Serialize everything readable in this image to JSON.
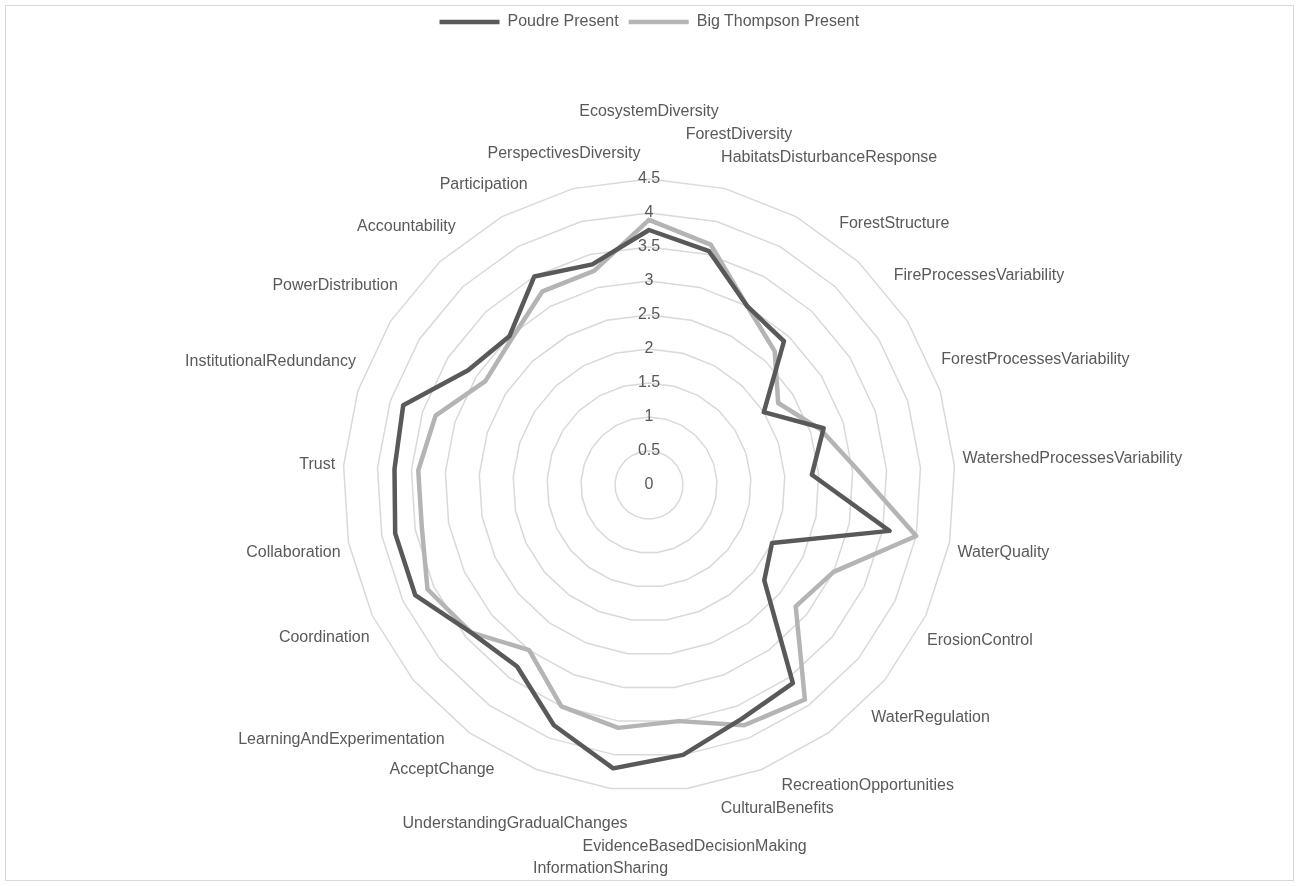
{
  "chart_data": {
    "type": "radar",
    "categories": [
      "EcosystemDiversity",
      "ForestDiversity",
      "HabitatsDisturbanceResponse",
      "ForestStructure",
      "FireProcessesVariability",
      "ForestProcessesVariability",
      "WatershedProcessesVariability",
      "WaterQuality",
      "ErosionControl",
      "WaterRegulation",
      "RecreationOpportunities",
      "CulturalBenefits",
      "EvidenceBasedDecisionMaking",
      "InformationSharing",
      "UnderstandingGradualChanges",
      "AcceptChange",
      "LearningAndExperimentation",
      "Coordination",
      "Collaboration",
      "Trust",
      "InstitutionalRedundancy",
      "PowerDistribution",
      "Accountability",
      "Participation",
      "PerspectivesDiversity"
    ],
    "series": [
      {
        "name": "Poudre Present",
        "color": "#595959",
        "values": [
          3.75,
          3.55,
          3.0,
          2.9,
          2.0,
          2.7,
          2.4,
          3.6,
          2.0,
          2.2,
          3.6,
          3.7,
          4.0,
          4.2,
          3.8,
          3.3,
          3.4,
          3.8,
          3.8,
          3.75,
          3.8,
          3.15,
          3.0,
          3.5,
          3.35
        ]
      },
      {
        "name": "Big Thompson Present",
        "color": "#b4b4b4",
        "values": [
          3.9,
          3.65,
          3.0,
          2.7,
          2.25,
          2.65,
          3.1,
          4.0,
          3.0,
          2.8,
          3.9,
          3.8,
          3.5,
          3.6,
          3.5,
          3.0,
          3.4,
          3.6,
          3.4,
          3.4,
          3.3,
          2.85,
          2.95,
          3.25,
          3.25
        ]
      }
    ],
    "ylim": [
      0,
      4.5
    ],
    "yticks": [
      0,
      0.5,
      1,
      1.5,
      2,
      2.5,
      3,
      3.5,
      4,
      4.5
    ],
    "grid": true,
    "legend": "top",
    "marker": "none",
    "line_style": "solid"
  }
}
